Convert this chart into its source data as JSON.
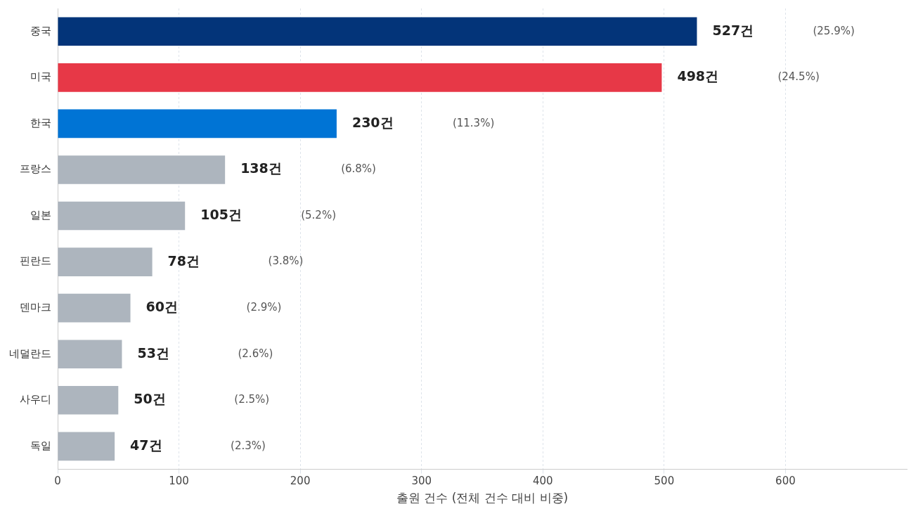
{
  "chart_data": {
    "type": "bar",
    "orientation": "horizontal",
    "xlabel": "출원 건수 (전체 건수 대비 비중)",
    "categories": [
      "중국",
      "미국",
      "한국",
      "프랑스",
      "일본",
      "핀란드",
      "덴마크",
      "네덜란드",
      "사우디",
      "독일"
    ],
    "values": [
      527,
      498,
      230,
      138,
      105,
      78,
      60,
      53,
      50,
      47
    ],
    "colors": [
      "#033479",
      "#e73847",
      "#0074d5",
      "#adb5be",
      "#adb5be",
      "#adb5be",
      "#adb5be",
      "#adb5be",
      "#adb5be",
      "#adb5be"
    ],
    "value_labels": [
      "527건 (25.9%)",
      "498건 (24.5%)",
      "230건 (11.3%)",
      "138건 (6.8%)",
      "105건 (5.2%)",
      "78건 (3.8%)",
      "60건 (2.9%)",
      "53건 (2.6%)",
      "50건 (2.5%)",
      "47건 (2.3%)"
    ],
    "xlim": [
      0,
      700
    ],
    "xticks": [
      0,
      100,
      200,
      300,
      400,
      500,
      600
    ],
    "grid": "x",
    "legend": false
  }
}
